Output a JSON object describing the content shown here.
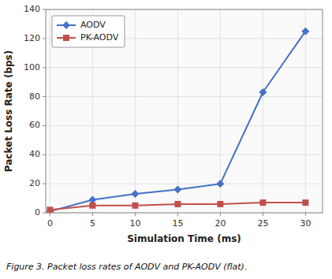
{
  "chart_data": {
    "type": "line",
    "x_label": "Simulation Time (ms)",
    "y_label": "Packet Loss Rate (bps)",
    "caption": "Figure 3. Packet loss rates of AODV and PK-AODV (flat).",
    "x": [
      0,
      5,
      10,
      15,
      20,
      25,
      30
    ],
    "series": [
      {
        "name": "AODV",
        "color": "#4472C4",
        "marker": "diamond",
        "values": [
          1,
          9,
          13,
          16,
          20,
          83,
          125
        ]
      },
      {
        "name": "PK-AODV",
        "color": "#C0504D",
        "marker": "square",
        "values": [
          2,
          5,
          5,
          6,
          6,
          7,
          7
        ]
      }
    ],
    "xlim": [
      -0.5,
      32
    ],
    "ylim": [
      0,
      140
    ],
    "xticks": [
      0,
      5,
      10,
      15,
      20,
      25,
      30
    ],
    "yticks": [
      0,
      20,
      40,
      60,
      80,
      100,
      120,
      140
    ],
    "grid": true,
    "legend": "upper left"
  }
}
